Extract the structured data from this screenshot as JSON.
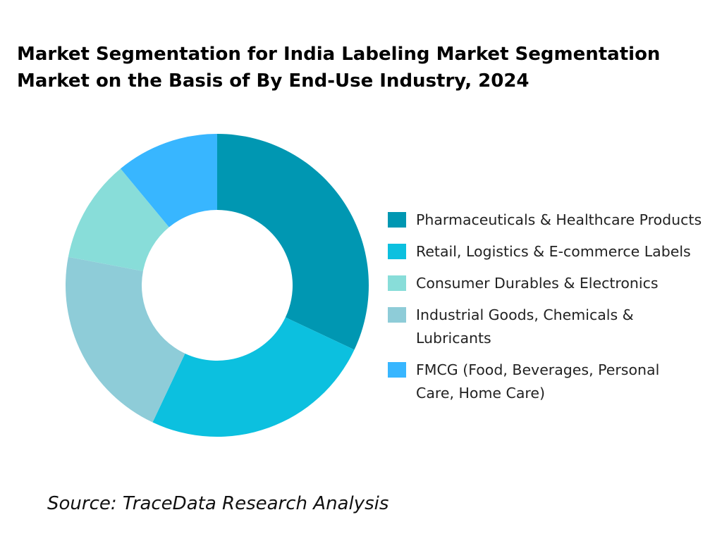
{
  "chart_data": {
    "type": "pie",
    "donut": true,
    "title": "Market Segmentation for India Labeling Market Segmentation Market on the Basis of By End-Use Industry, 2024",
    "slices": [
      {
        "name": "Pharmaceuticals & Healthcare Products",
        "value": 32,
        "color": "#0097B2"
      },
      {
        "name": "Retail, Logistics & E-commerce Labels",
        "value": 25,
        "color": "#0CC0DF"
      },
      {
        "name": "Industrial Goods, Chemicals & Lubricants",
        "value": 21,
        "color": "#8ECCD8"
      },
      {
        "name": "Consumer Durables & Electronics",
        "value": 11,
        "color": "#88DDD9"
      },
      {
        "name": "FMCG (Food, Beverages, Personal Care, Home Care)",
        "value": 11,
        "color": "#38B6FF"
      }
    ],
    "legend_order": [
      0,
      1,
      3,
      2,
      4
    ],
    "legend_placement": "right",
    "source": "Source: TraceData Research Analysis"
  }
}
